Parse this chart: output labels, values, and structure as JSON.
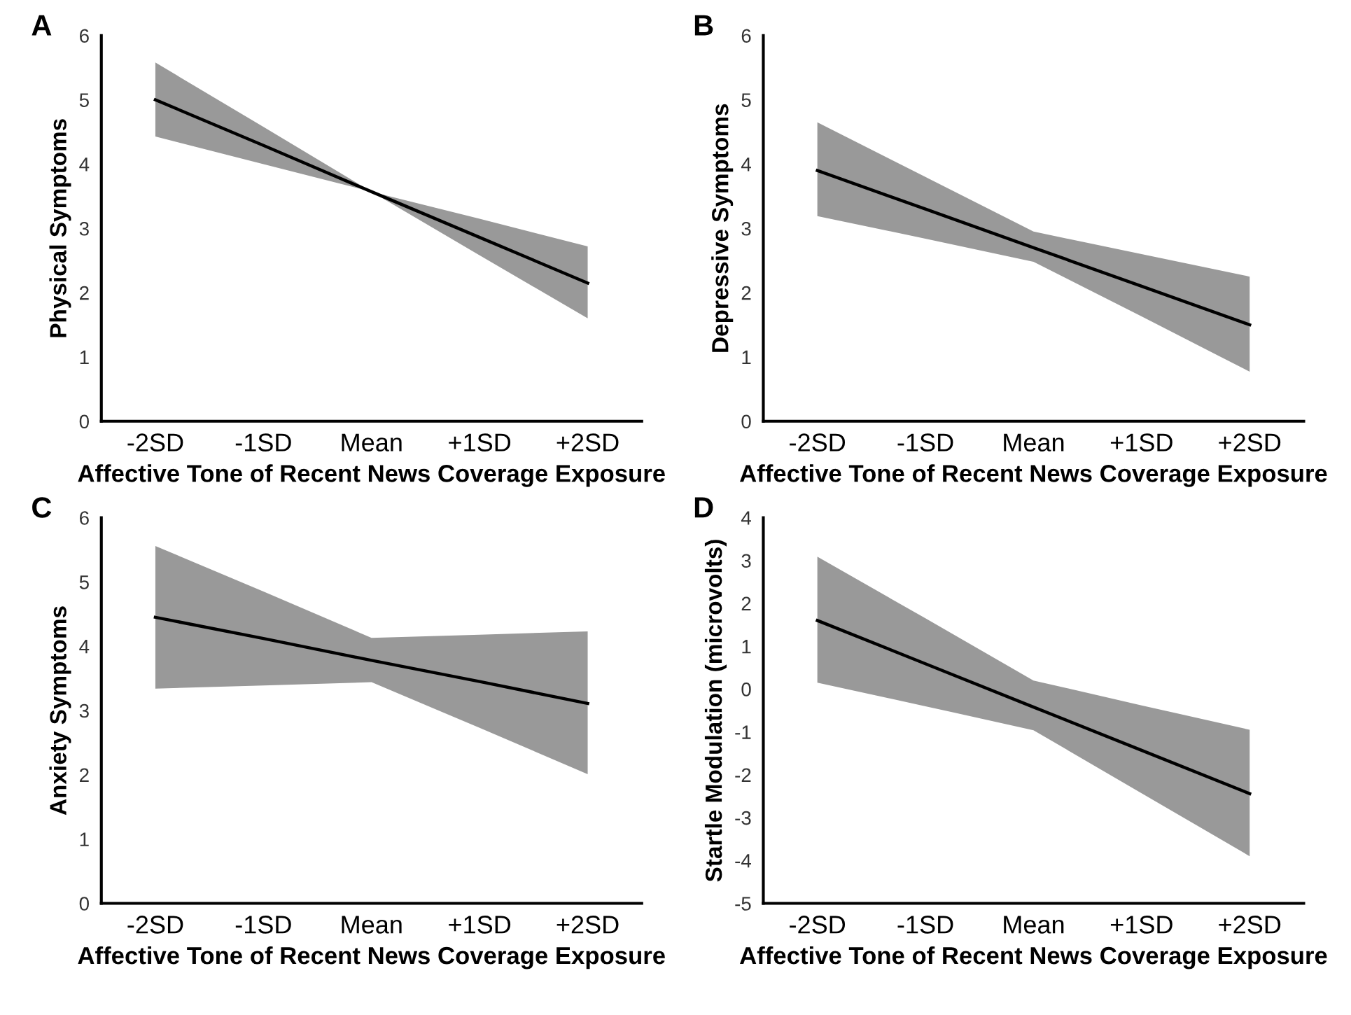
{
  "chart_data": [
    {
      "type": "line",
      "title": "A",
      "ylabel": "Physical Symptoms",
      "xlabel": "Affective Tone of Recent News Coverage Exposure",
      "categories": [
        "-2SD",
        "-1SD",
        "Mean",
        "+1SD",
        "+2SD"
      ],
      "ylim": [
        0,
        6
      ],
      "yticks": [
        0,
        1,
        2,
        3,
        4,
        5,
        6
      ],
      "grid": false,
      "legend": false,
      "series": [
        {
          "color": "#000000",
          "values": [
            5.0,
            4.29,
            3.57,
            2.86,
            2.15
          ],
          "upper": [
            5.58,
            4.58,
            3.57,
            3.15,
            2.72
          ],
          "lower": [
            4.43,
            4.0,
            3.57,
            2.58,
            1.6
          ]
        }
      ]
    },
    {
      "type": "line",
      "title": "B",
      "ylabel": "Depressive Symptoms",
      "xlabel": "Affective Tone of Recent News Coverage Exposure",
      "categories": [
        "-2SD",
        "-1SD",
        "Mean",
        "+1SD",
        "+2SD"
      ],
      "ylim": [
        0,
        6
      ],
      "yticks": [
        0,
        1,
        2,
        3,
        4,
        5,
        6
      ],
      "grid": false,
      "legend": false,
      "series": [
        {
          "color": "#000000",
          "values": [
            3.9,
            3.3,
            2.7,
            2.1,
            1.5
          ],
          "upper": [
            4.65,
            3.8,
            2.95,
            2.6,
            2.25
          ],
          "lower": [
            3.19,
            2.84,
            2.48,
            1.63,
            0.77
          ]
        }
      ]
    },
    {
      "type": "line",
      "title": "C",
      "ylabel": "Anxiety Symptoms",
      "xlabel": "Affective Tone of Recent News Coverage Exposure",
      "categories": [
        "-2SD",
        "-1SD",
        "Mean",
        "+1SD",
        "+2SD"
      ],
      "ylim": [
        0,
        6
      ],
      "yticks": [
        0,
        1,
        2,
        3,
        4,
        5,
        6
      ],
      "grid": false,
      "legend": false,
      "series": [
        {
          "color": "#000000",
          "values": [
            4.45,
            4.12,
            3.78,
            3.45,
            3.11
          ],
          "upper": [
            5.56,
            4.85,
            4.13,
            4.18,
            4.23
          ],
          "lower": [
            3.34,
            3.39,
            3.44,
            2.73,
            2.01
          ]
        }
      ]
    },
    {
      "type": "line",
      "title": "D",
      "ylabel": "Startle Modulation (microvolts)",
      "xlabel": "Affective Tone of Recent News Coverage Exposure",
      "categories": [
        "-2SD",
        "-1SD",
        "Mean",
        "+1SD",
        "+2SD"
      ],
      "ylim": [
        -5,
        4
      ],
      "yticks": [
        -5,
        -4,
        -3,
        -2,
        -1,
        0,
        1,
        2,
        3,
        4
      ],
      "grid": false,
      "legend": false,
      "series": [
        {
          "color": "#000000",
          "values": [
            1.6,
            0.59,
            -0.42,
            -1.43,
            -2.44
          ],
          "upper": [
            3.09,
            1.65,
            0.2,
            -0.38,
            -0.95
          ],
          "lower": [
            0.15,
            -0.4,
            -0.96,
            -2.43,
            -3.9
          ]
        }
      ]
    }
  ]
}
